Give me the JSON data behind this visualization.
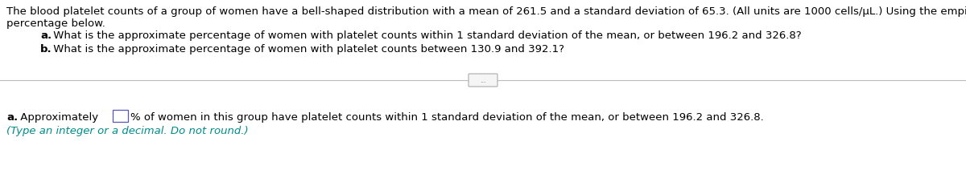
{
  "bg_color": "#ffffff",
  "text_color": "#000000",
  "teal_color": "#008B8B",
  "line1": "The blood platelet counts of a group of women have a bell-shaped distribution with a mean of 261.5 and a standard deviation of 65.3. (All units are 1000 cells/μL.) Using the empirical rule, find each approximate",
  "line2": "percentage below.",
  "item_a_bold": "a.",
  "item_a_text": " What is the approximate percentage of women with platelet counts within 1 standard deviation of the mean, or between 196.2 and 326.8?",
  "item_b_bold": "b.",
  "item_b_text": " What is the approximate percentage of women with platelet counts between 130.9 and 392.1?",
  "ans_bold": "a.",
  "ans_pre": " Approximately ",
  "ans_post": "% of women in this group have platelet counts within 1 standard deviation of the mean, or between 196.2 and 326.8.",
  "ans_hint": "(Type an integer or a decimal. Do not round.)",
  "dots": "...",
  "font_size": 9.5
}
